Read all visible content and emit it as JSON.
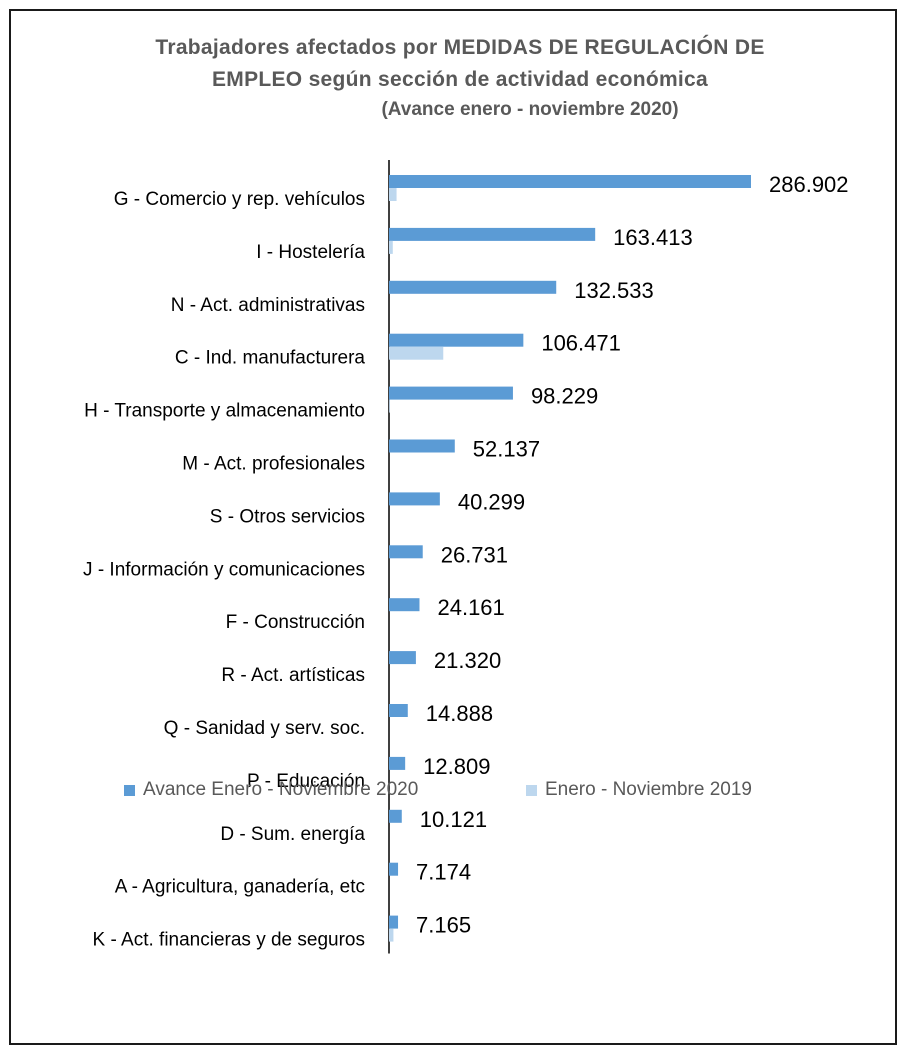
{
  "chart_data": {
    "type": "bar",
    "orientation": "horizontal",
    "title_lines": [
      "Trabajadores  afectados por MEDIDAS DE REGULACIÓN DE",
      "EMPLEO según  sección de actividad económica",
      "(Avance enero - noviembre 2020)"
    ],
    "categories": [
      "G - Comercio y rep. vehículos",
      "I - Hostelería",
      "N - Act. administrativas",
      "C - Ind. manufacturera",
      "H - Transporte y almacenamiento",
      "M - Act. profesionales",
      "S - Otros servicios",
      "J - Información y comunicaciones",
      "F - Construcción",
      "R - Act. artísticas",
      "Q - Sanidad y serv. soc.",
      "P - Educación",
      "D - Sum. energía",
      "A - Agricultura, ganadería, etc",
      "K - Act. financieras y de seguros"
    ],
    "series": [
      {
        "name": "Avance Enero - Noviembre 2020",
        "color": "#5b9bd5",
        "values": [
          286902,
          163413,
          132533,
          106471,
          98229,
          52137,
          40299,
          26731,
          24161,
          21320,
          14888,
          12809,
          10121,
          7174,
          7165
        ],
        "labels": [
          "286.902",
          "163.413",
          "132.533",
          "106.471",
          "98.229",
          "52.137",
          "40.299",
          "26.731",
          "24.161",
          "21.320",
          "14.888",
          "12.809",
          "10.121",
          "7.174",
          "7.165"
        ]
      },
      {
        "name": "Enero - Noviembre 2019",
        "color": "#bdd7ee",
        "values": [
          6000,
          3000,
          0,
          43000,
          600,
          0,
          0,
          0,
          0,
          0,
          0,
          0,
          0,
          0,
          3500
        ]
      }
    ],
    "xlim": [
      0,
      286902
    ],
    "grid": false,
    "legend_position": "bottom"
  }
}
